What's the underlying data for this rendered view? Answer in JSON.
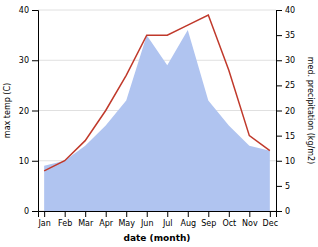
{
  "chart_data": {
    "type": "line",
    "xlabel": "date (month)",
    "ylabel": "max temp (C)",
    "y2label": "med. precipitation (kg/m2)",
    "categories": [
      "Jan",
      "Feb",
      "Mar",
      "Apr",
      "May",
      "Jun",
      "Jul",
      "Aug",
      "Sep",
      "Oct",
      "Nov",
      "Dec"
    ],
    "series": [
      {
        "type": "area",
        "axis": "y2",
        "color": "#b0c4f0",
        "values": [
          9,
          10,
          13,
          17,
          22,
          35,
          29,
          36,
          22,
          17,
          13,
          12
        ]
      },
      {
        "type": "line",
        "color": "#c0392b",
        "values": [
          8,
          10,
          14,
          20,
          27,
          35,
          35,
          37,
          39,
          28,
          15,
          12
        ]
      }
    ],
    "ylim": [
      0,
      40
    ],
    "yticks": [
      0,
      10,
      20,
      30,
      40
    ],
    "y2lim": [
      0,
      40
    ],
    "y2ticks": [
      0,
      5,
      10,
      15,
      20,
      25,
      30,
      35,
      40
    ],
    "grid": true
  }
}
